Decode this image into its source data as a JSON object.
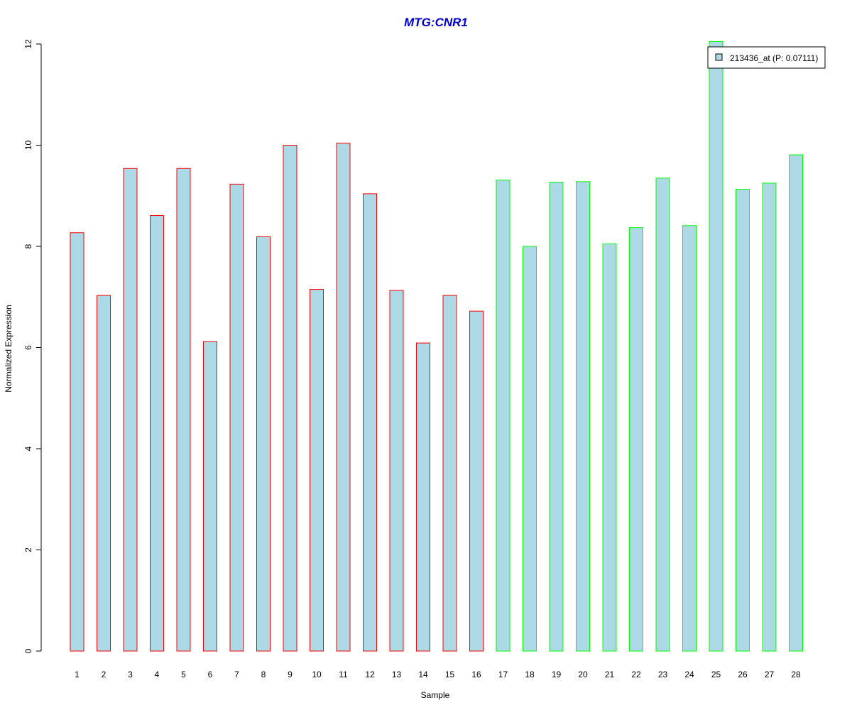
{
  "chart_data": {
    "type": "bar",
    "title": "MTG:CNR1",
    "xlabel": "Sample",
    "ylabel": "Normalized Expression",
    "ylim": [
      0,
      12
    ],
    "yticks": [
      "0",
      "2",
      "4",
      "6",
      "8",
      "10",
      "12"
    ],
    "categories": [
      "1",
      "2",
      "3",
      "4",
      "5",
      "6",
      "7",
      "8",
      "9",
      "10",
      "11",
      "12",
      "13",
      "14",
      "15",
      "16",
      "17",
      "18",
      "19",
      "20",
      "21",
      "22",
      "23",
      "24",
      "25",
      "26",
      "27",
      "28"
    ],
    "series": [
      {
        "name": "213436_at (P: 0.07111)",
        "values": [
          8.27,
          7.03,
          9.54,
          8.61,
          9.54,
          6.12,
          9.23,
          8.19,
          10.0,
          7.15,
          10.04,
          9.04,
          7.13,
          6.09,
          7.03,
          6.72,
          9.31,
          8.0,
          9.27,
          9.28,
          8.05,
          8.37,
          9.35,
          8.41,
          12.05,
          9.13,
          9.25,
          9.81
        ]
      }
    ],
    "groups": [
      1,
      1,
      1,
      1,
      1,
      1,
      1,
      1,
      1,
      1,
      1,
      1,
      1,
      1,
      1,
      1,
      2,
      2,
      2,
      2,
      2,
      2,
      2,
      2,
      2,
      2,
      2,
      2
    ],
    "legend_position": "top-right",
    "grid": false
  },
  "colors": {
    "title": "#0000CC",
    "bar_fill": "#ADD8E6",
    "group1_border": "#FF0000",
    "group2_border": "#00FF00",
    "axis": "#000000"
  }
}
